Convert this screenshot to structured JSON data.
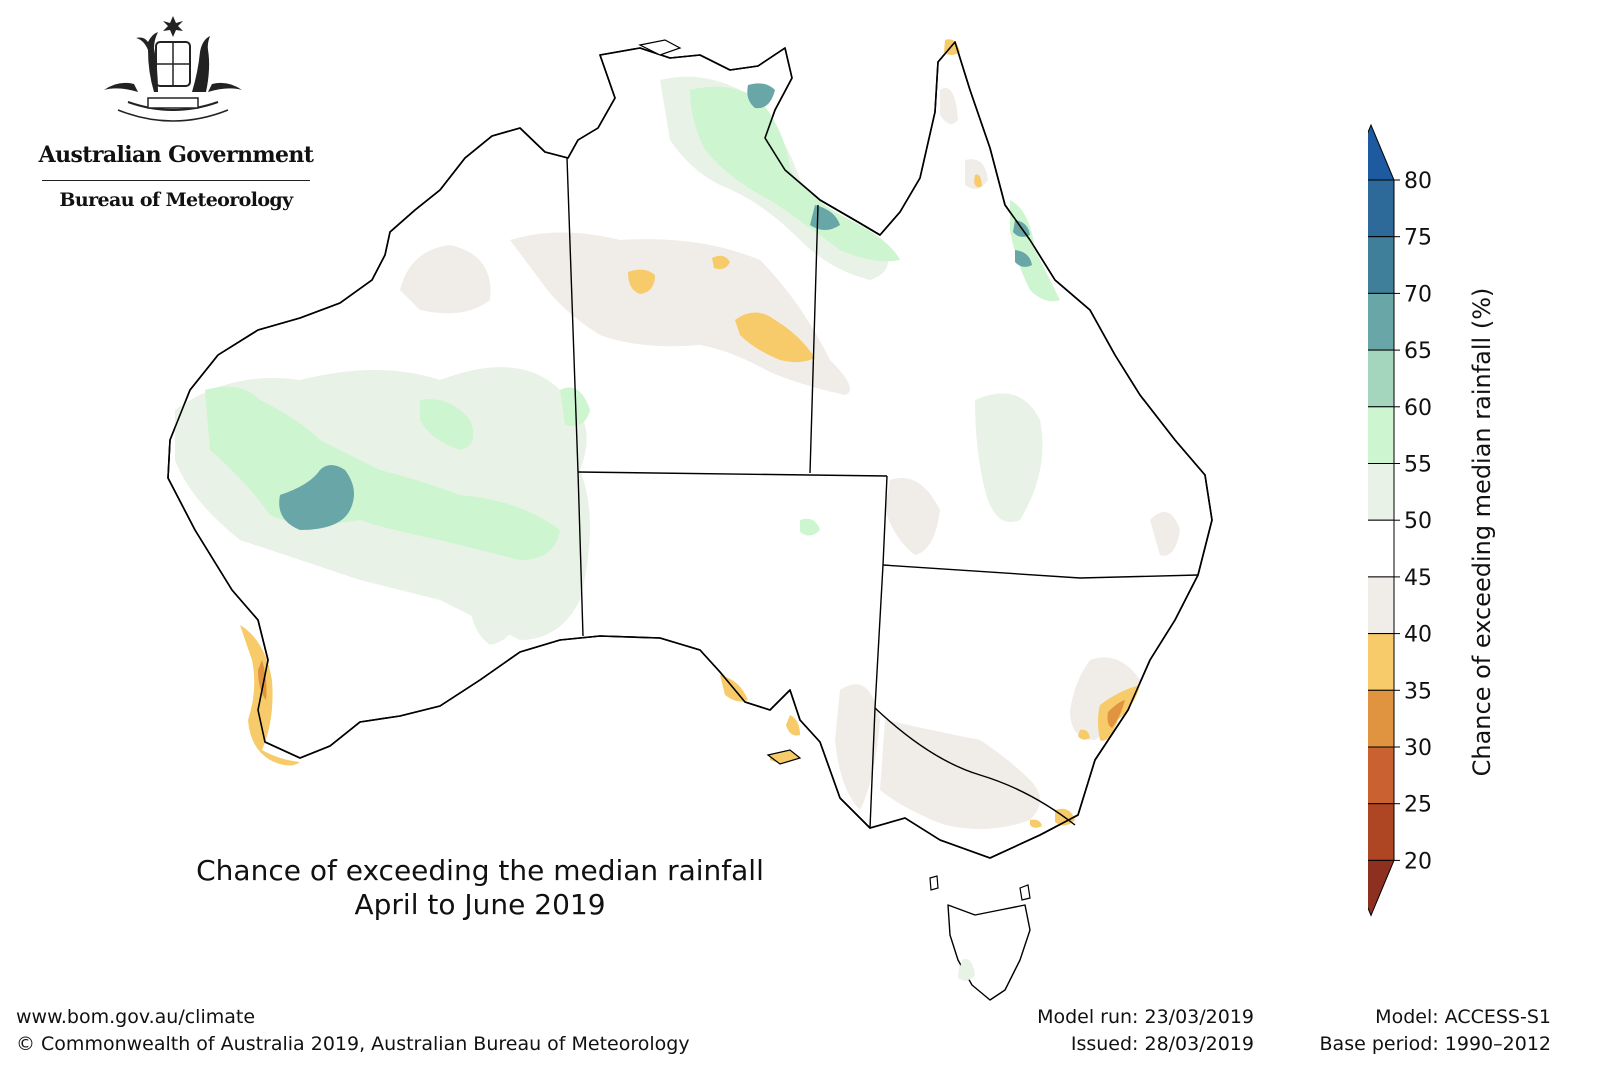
{
  "logo": {
    "government": "Australian Government",
    "bureau": "Bureau of Meteorology"
  },
  "map": {
    "title_line1": "Chance of exceeding the median rainfall",
    "title_line2": "April to June 2019"
  },
  "colorbar": {
    "label": "Chance of exceeding median rainfall (%)",
    "ticks": [
      "80",
      "75",
      "70",
      "65",
      "60",
      "55",
      "50",
      "45",
      "40",
      "35",
      "30",
      "25",
      "20"
    ],
    "bins": [
      {
        "range": "75-80",
        "color": "#2d6a9a"
      },
      {
        "range": "70-75",
        "color": "#3f7f99"
      },
      {
        "range": "65-70",
        "color": "#69a6a7"
      },
      {
        "range": "60-65",
        "color": "#a4d6bd"
      },
      {
        "range": "55-60",
        "color": "#cdf5cf"
      },
      {
        "range": "50-55",
        "color": "#e9f2e7"
      },
      {
        "range": "45-50",
        "color": "#ffffff"
      },
      {
        "range": "40-45",
        "color": "#f0ece8"
      },
      {
        "range": "35-40",
        "color": "#f7cb69"
      },
      {
        "range": "30-35",
        "color": "#e09440"
      },
      {
        "range": "25-30",
        "color": "#c96130"
      },
      {
        "range": "20-25",
        "color": "#ae4523"
      }
    ],
    "top_extend_color": "#1e5aa0",
    "bottom_extend_color": "#8e3020"
  },
  "footer": {
    "url": "www.bom.gov.au/climate",
    "copyright": "© Commonwealth of Australia 2019, Australian Bureau of Meteorology",
    "model_run": "Model run: 23/03/2019",
    "issued": "Issued: 28/03/2019",
    "model": "Model: ACCESS-S1",
    "base_period": "Base period: 1990–2012"
  }
}
